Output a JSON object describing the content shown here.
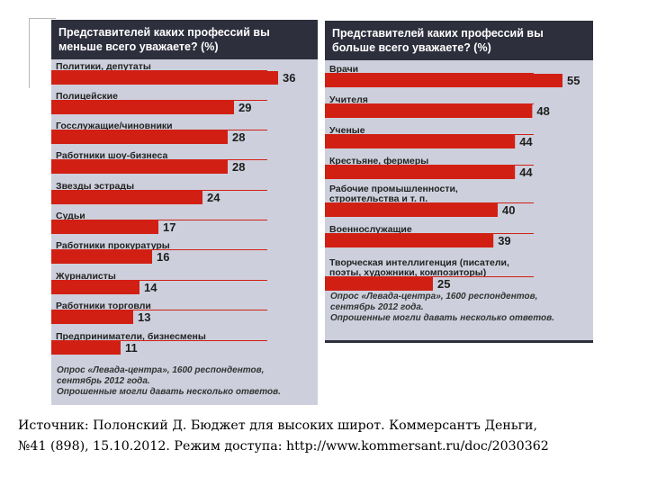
{
  "caption": {
    "line1": "Источник: Полонский Д. Бюджет для высоких широт. Коммерсантъ Деньги,",
    "line2": "№41 (898), 15.10.2012. Режим доступа: http://www.kommersant.ru/doc/2030362"
  },
  "colors": {
    "bar": "#d21f14",
    "panel_bg": "#cdd0dc",
    "header_bg": "#2e2f3d"
  },
  "chart_data": [
    {
      "type": "bar",
      "orientation": "horizontal",
      "title": "Представителей каких профессий вы меньше всего уважаете? (%)",
      "categories": [
        "Политики, депутаты",
        "Полицейские",
        "Госслужащие/чиновники",
        "Работники шоу-бизнеса",
        "Звезды эстрады",
        "Судьи",
        "Работники прокуратуры",
        "Журналисты",
        "Работники торговли",
        "Предприниматели, бизнесмены"
      ],
      "values": [
        36,
        29,
        28,
        28,
        24,
        17,
        16,
        14,
        13,
        11
      ],
      "note": [
        "Опрос «Левада-центра», 1600 респондентов,",
        "сентябрь 2012 года.",
        "Опрошенные могли давать несколько ответов."
      ]
    },
    {
      "type": "bar",
      "orientation": "horizontal",
      "title": "Представителей каких профессий вы больше всего уважаете? (%)",
      "categories": [
        "Врачи",
        "Учителя",
        "Ученые",
        "Крестьяне, фермеры",
        "Рабочие промышленности, строительства и т. п.",
        "Военнослужащие",
        "Творческая интеллигенция (писатели, поэты, художники, композиторы)"
      ],
      "values": [
        55,
        48,
        44,
        44,
        40,
        39,
        25
      ],
      "note": [
        "Опрос «Левада-центра», 1600 респондентов,",
        "сентябрь 2012 года.",
        "Опрошенные могли давать несколько ответов."
      ]
    }
  ]
}
